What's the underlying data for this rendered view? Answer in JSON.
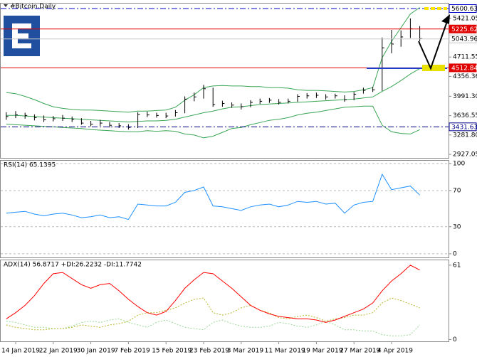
{
  "chart_data": [
    {
      "type": "ohlc",
      "title": "#Bitcoin,Daily",
      "categories": [
        null,
        "14 Jan 2019",
        null,
        null,
        null,
        "22 Jan 2019",
        null,
        null,
        null,
        "30 Jan 2019",
        null,
        null,
        null,
        "7 Feb 2019",
        null,
        null,
        null,
        "15 Feb 2019",
        null,
        null,
        null,
        "23 Feb 2019",
        null,
        null,
        null,
        "3 Mar 2019",
        null,
        null,
        null,
        "11 Mar 2019",
        null,
        null,
        null,
        "19 Mar 2019",
        null,
        null,
        null,
        "27 Mar 2019",
        null,
        null,
        null,
        "4 Apr 2019",
        null,
        null,
        null
      ],
      "high": [
        3700,
        3720,
        3690,
        3660,
        3640,
        3630,
        3650,
        3620,
        3590,
        3540,
        3560,
        3520,
        3500,
        3480,
        3700,
        3710,
        3690,
        3690,
        3740,
        3990,
        4060,
        4200,
        4150,
        3910,
        3880,
        3860,
        3920,
        3950,
        3960,
        3940,
        3950,
        4030,
        4050,
        4060,
        4030,
        4040,
        4010,
        4070,
        4150,
        4160,
        5070,
        5210,
        5200,
        5420,
        5280
      ],
      "low": [
        3560,
        3590,
        3580,
        3550,
        3520,
        3530,
        3540,
        3520,
        3470,
        3440,
        3450,
        3420,
        3410,
        3380,
        3410,
        3610,
        3600,
        3590,
        3620,
        3680,
        3900,
        3950,
        3800,
        3800,
        3780,
        3750,
        3790,
        3850,
        3870,
        3840,
        3860,
        3890,
        3950,
        3960,
        3930,
        3950,
        3890,
        3920,
        4040,
        4070,
        4090,
        4780,
        4900,
        5060,
        5000
      ],
      "close": [
        3620,
        3650,
        3640,
        3600,
        3560,
        3580,
        3590,
        3570,
        3500,
        3480,
        3500,
        3460,
        3450,
        3420,
        3660,
        3650,
        3640,
        3630,
        3690,
        3940,
        3980,
        4130,
        3840,
        3860,
        3830,
        3800,
        3880,
        3900,
        3920,
        3880,
        3900,
        3990,
        4000,
        4010,
        3980,
        4000,
        3930,
        4030,
        4100,
        4110,
        4880,
        4950,
        5080,
        5230,
        5050
      ],
      "bar_color": "#000000",
      "upper_band": [
        4060,
        4040,
        3990,
        3930,
        3860,
        3800,
        3770,
        3750,
        3740,
        3740,
        3730,
        3720,
        3710,
        3700,
        3720,
        3720,
        3730,
        3740,
        3790,
        3920,
        4020,
        4150,
        4180,
        4190,
        4180,
        4180,
        4170,
        4170,
        4150,
        4150,
        4140,
        4110,
        4100,
        4100,
        4090,
        4080,
        4070,
        4080,
        4110,
        4150,
        4700,
        5000,
        5250,
        5500,
        5620
      ],
      "middle_band": [
        3640,
        3640,
        3630,
        3620,
        3610,
        3600,
        3590,
        3580,
        3570,
        3560,
        3550,
        3540,
        3530,
        3520,
        3530,
        3540,
        3540,
        3550,
        3570,
        3610,
        3650,
        3690,
        3720,
        3760,
        3790,
        3800,
        3820,
        3840,
        3850,
        3860,
        3870,
        3880,
        3890,
        3900,
        3910,
        3920,
        3930,
        3940,
        3960,
        3980,
        4080,
        4170,
        4280,
        4400,
        4500
      ],
      "lower_band": [
        3480,
        3470,
        3460,
        3450,
        3440,
        3430,
        3420,
        3410,
        3400,
        3380,
        3370,
        3360,
        3350,
        3340,
        3340,
        3360,
        3350,
        3360,
        3350,
        3300,
        3280,
        3230,
        3260,
        3330,
        3400,
        3420,
        3470,
        3510,
        3550,
        3570,
        3600,
        3650,
        3680,
        3700,
        3730,
        3760,
        3790,
        3800,
        3810,
        3810,
        3460,
        3340,
        3310,
        3300,
        3380
      ],
      "band_color": "#3aa655",
      "ylim": [
        2862,
        5692
      ],
      "yticks": [
        2927.05,
        {
          "value": 3281.8,
          "label": "3281.80"
        },
        3636.55,
        {
          "value": 3991.3,
          "label": "3991.30"
        },
        4356.36,
        4711.55,
        5421.05
      ],
      "levels": [
        {
          "value": 5600.63,
          "color": "#0000cd",
          "style": "dashdot",
          "label_bg": "#ffffff",
          "label_fg": "#000000"
        },
        {
          "value": 5225.62,
          "color": "#e00000",
          "style": "solid",
          "label_bg": "#e00000",
          "label_fg": "#ffffff"
        },
        {
          "value": 5043.96,
          "color": "#c8c8c8",
          "style": "solid",
          "label_bg": "#ffffff",
          "label_fg": "#000000"
        },
        {
          "value": 4512.84,
          "color": "#e00000",
          "style": "solid",
          "label_bg": "#e00000",
          "label_fg": "#ffffff"
        },
        {
          "value": 3431.63,
          "color": "#00008b",
          "style": "dashdot",
          "label_bg": "#ffffff",
          "label_fg": "#00008b"
        }
      ]
    },
    {
      "type": "line",
      "title": "RSI(14) 65.1395",
      "values": [
        45,
        46,
        47,
        44,
        42,
        44,
        45,
        43,
        40,
        41,
        43,
        40,
        41,
        38,
        55,
        54,
        53,
        53,
        57,
        68,
        70,
        74,
        53,
        52,
        50,
        48,
        52,
        54,
        55,
        52,
        54,
        58,
        57,
        58,
        55,
        56,
        45,
        54,
        57,
        58,
        88,
        71,
        73,
        75,
        65
      ],
      "color": "#1e90ff",
      "ylim": [
        -4,
        103
      ],
      "yticks": [
        0,
        30,
        70,
        100
      ],
      "grid": true
    },
    {
      "type": "multi-line",
      "title": "ADX(14) 56.8717 +DI:26.2232 -DI:11.7742",
      "adx": [
        17,
        22,
        28,
        36,
        46,
        54,
        55,
        50,
        45,
        42,
        45,
        46,
        40,
        33,
        27,
        22,
        20,
        23,
        32,
        42,
        49,
        55,
        54,
        48,
        42,
        35,
        28,
        24,
        21,
        19,
        18,
        17,
        17,
        16,
        14,
        16,
        19,
        22,
        25,
        30,
        40,
        48,
        54,
        61,
        57
      ],
      "plus_di": [
        12,
        10,
        9,
        8,
        8,
        9,
        9,
        10,
        12,
        11,
        10,
        12,
        13,
        15,
        20,
        22,
        22,
        24,
        26,
        30,
        33,
        34,
        22,
        20,
        22,
        26,
        28,
        24,
        22,
        18,
        17,
        19,
        20,
        18,
        15,
        17,
        18,
        20,
        20,
        22,
        30,
        34,
        32,
        29,
        26
      ],
      "minus_di": [
        15,
        14,
        12,
        10,
        10,
        9,
        9,
        11,
        14,
        15,
        14,
        16,
        17,
        14,
        12,
        10,
        14,
        16,
        13,
        10,
        9,
        8,
        14,
        16,
        13,
        11,
        10,
        10,
        11,
        14,
        13,
        11,
        10,
        12,
        15,
        12,
        8,
        8,
        7,
        7,
        4,
        3,
        3,
        4,
        12
      ],
      "adx_color": "#ff0000",
      "plus_di_color": "#b5b52a",
      "minus_di_color": "#9ad89a",
      "ylim": [
        -1.5,
        65
      ],
      "yticks": [
        0,
        61
      ],
      "grid": false
    }
  ]
}
